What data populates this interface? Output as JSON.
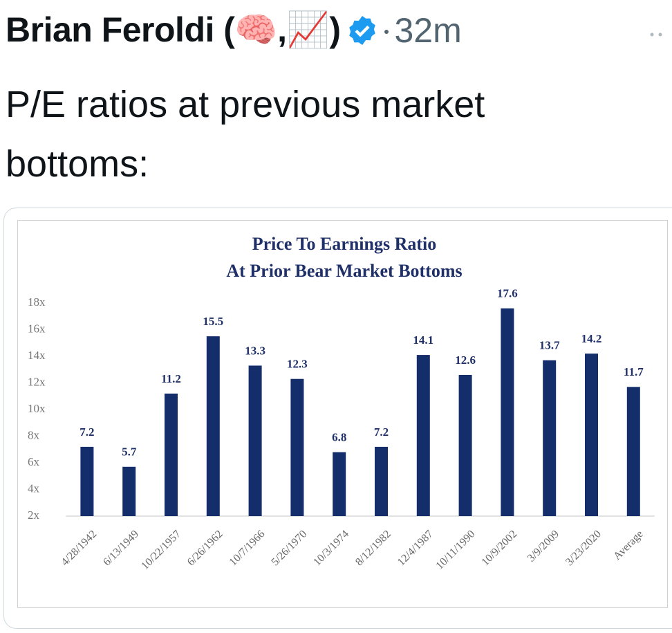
{
  "tweet": {
    "author": "Brian Feroldi (🧠,📈)",
    "timestamp": "32m",
    "text": "P/E ratios at previous market bottoms:"
  },
  "chart_data": {
    "type": "bar",
    "title": "Price To Earnings Ratio",
    "subtitle": "At Prior Bear Market Bottoms",
    "categories": [
      "4/28/1942",
      "6/13/1949",
      "10/22/1957",
      "6/26/1962",
      "10/7/1966",
      "5/26/1970",
      "10/3/1974",
      "8/12/1982",
      "12/4/1987",
      "10/11/1990",
      "10/9/2002",
      "3/9/2009",
      "3/23/2020",
      "Average"
    ],
    "values": [
      7.2,
      5.7,
      11.2,
      15.5,
      13.3,
      12.3,
      6.8,
      7.2,
      14.1,
      12.6,
      17.6,
      13.7,
      14.2,
      11.7
    ],
    "color": "#142d6b",
    "ylim": [
      2,
      18
    ],
    "yticks": [
      {
        "value": 2,
        "label": "2x"
      },
      {
        "value": 4,
        "label": "4x"
      },
      {
        "value": 6,
        "label": "6x"
      },
      {
        "value": 8,
        "label": "8x"
      },
      {
        "value": 10,
        "label": "10x"
      },
      {
        "value": 12,
        "label": "12x"
      },
      {
        "value": 14,
        "label": "14x"
      },
      {
        "value": 16,
        "label": "16x"
      },
      {
        "value": 18,
        "label": "18x"
      }
    ],
    "grid": false
  }
}
